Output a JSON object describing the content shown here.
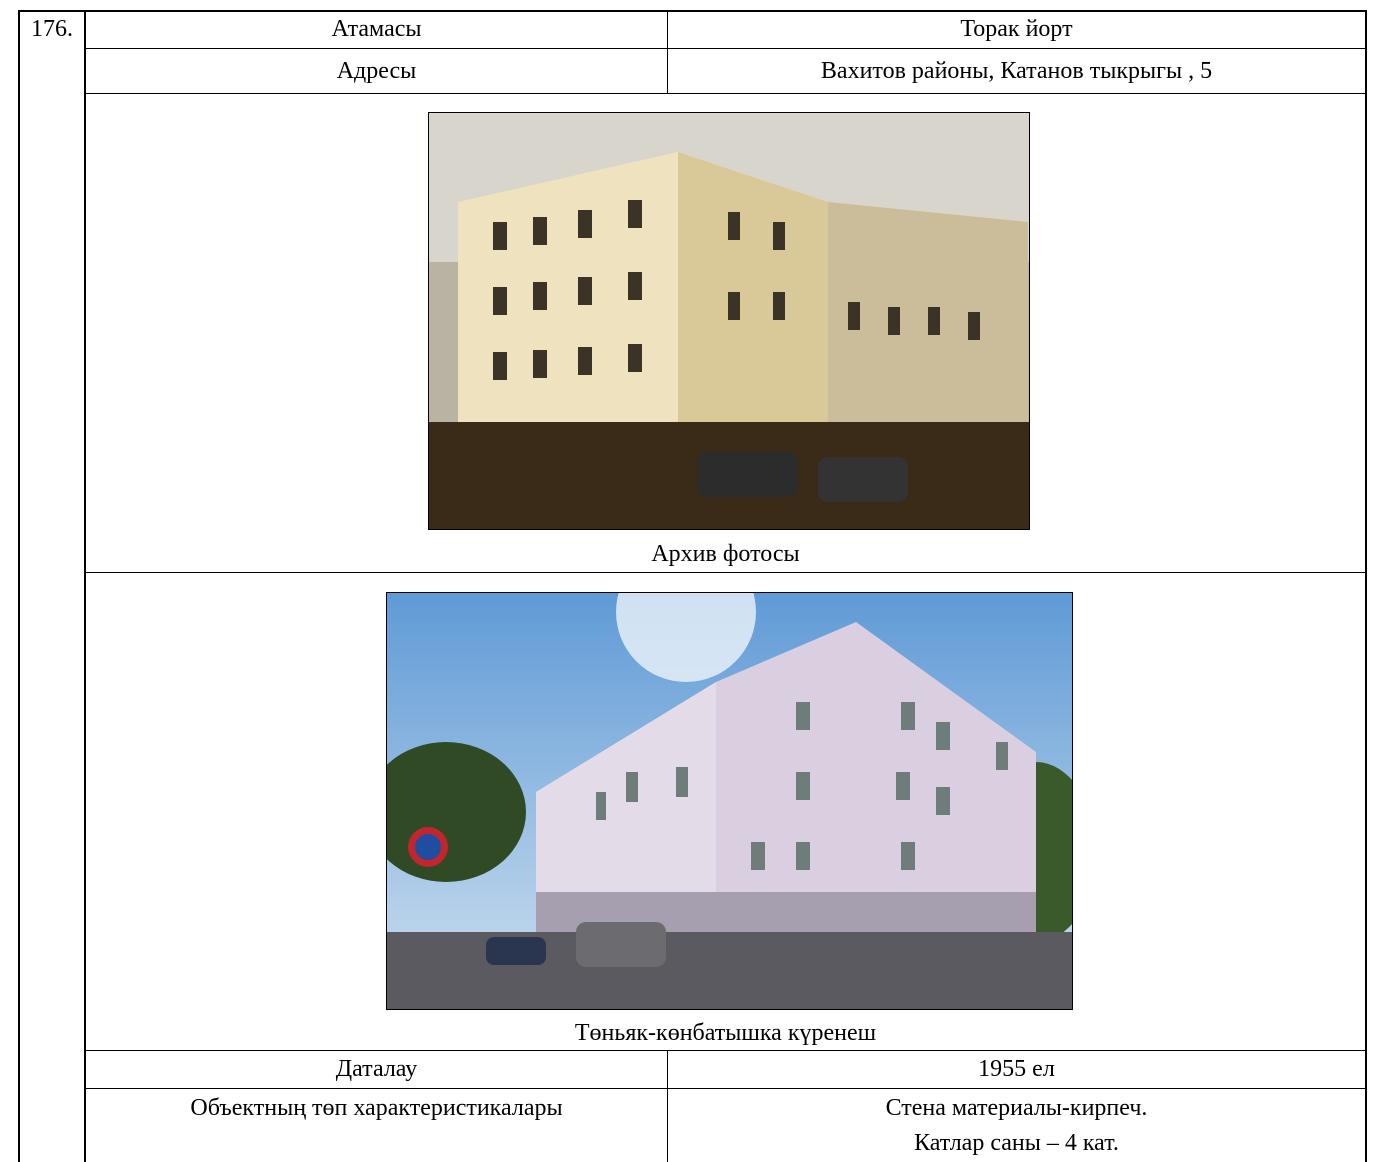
{
  "row_number": "176.",
  "rows_top": [
    [
      "Атамасы",
      "Торак йорт"
    ],
    [
      "Адресы",
      "Вахитов районы, Катанов тыкрыгы , 5"
    ]
  ],
  "photos": [
    {
      "caption": "Архив фотосы"
    },
    {
      "caption": "Төньяк-көнбатышка күренеш"
    }
  ],
  "rows_bottom": [
    [
      "Даталау",
      "1955 ел"
    ],
    [
      "Объектның төп характеристикалары",
      [
        "Стена материалы-кирпеч.",
        "Катлар саны – 4 кат."
      ]
    ]
  ]
}
